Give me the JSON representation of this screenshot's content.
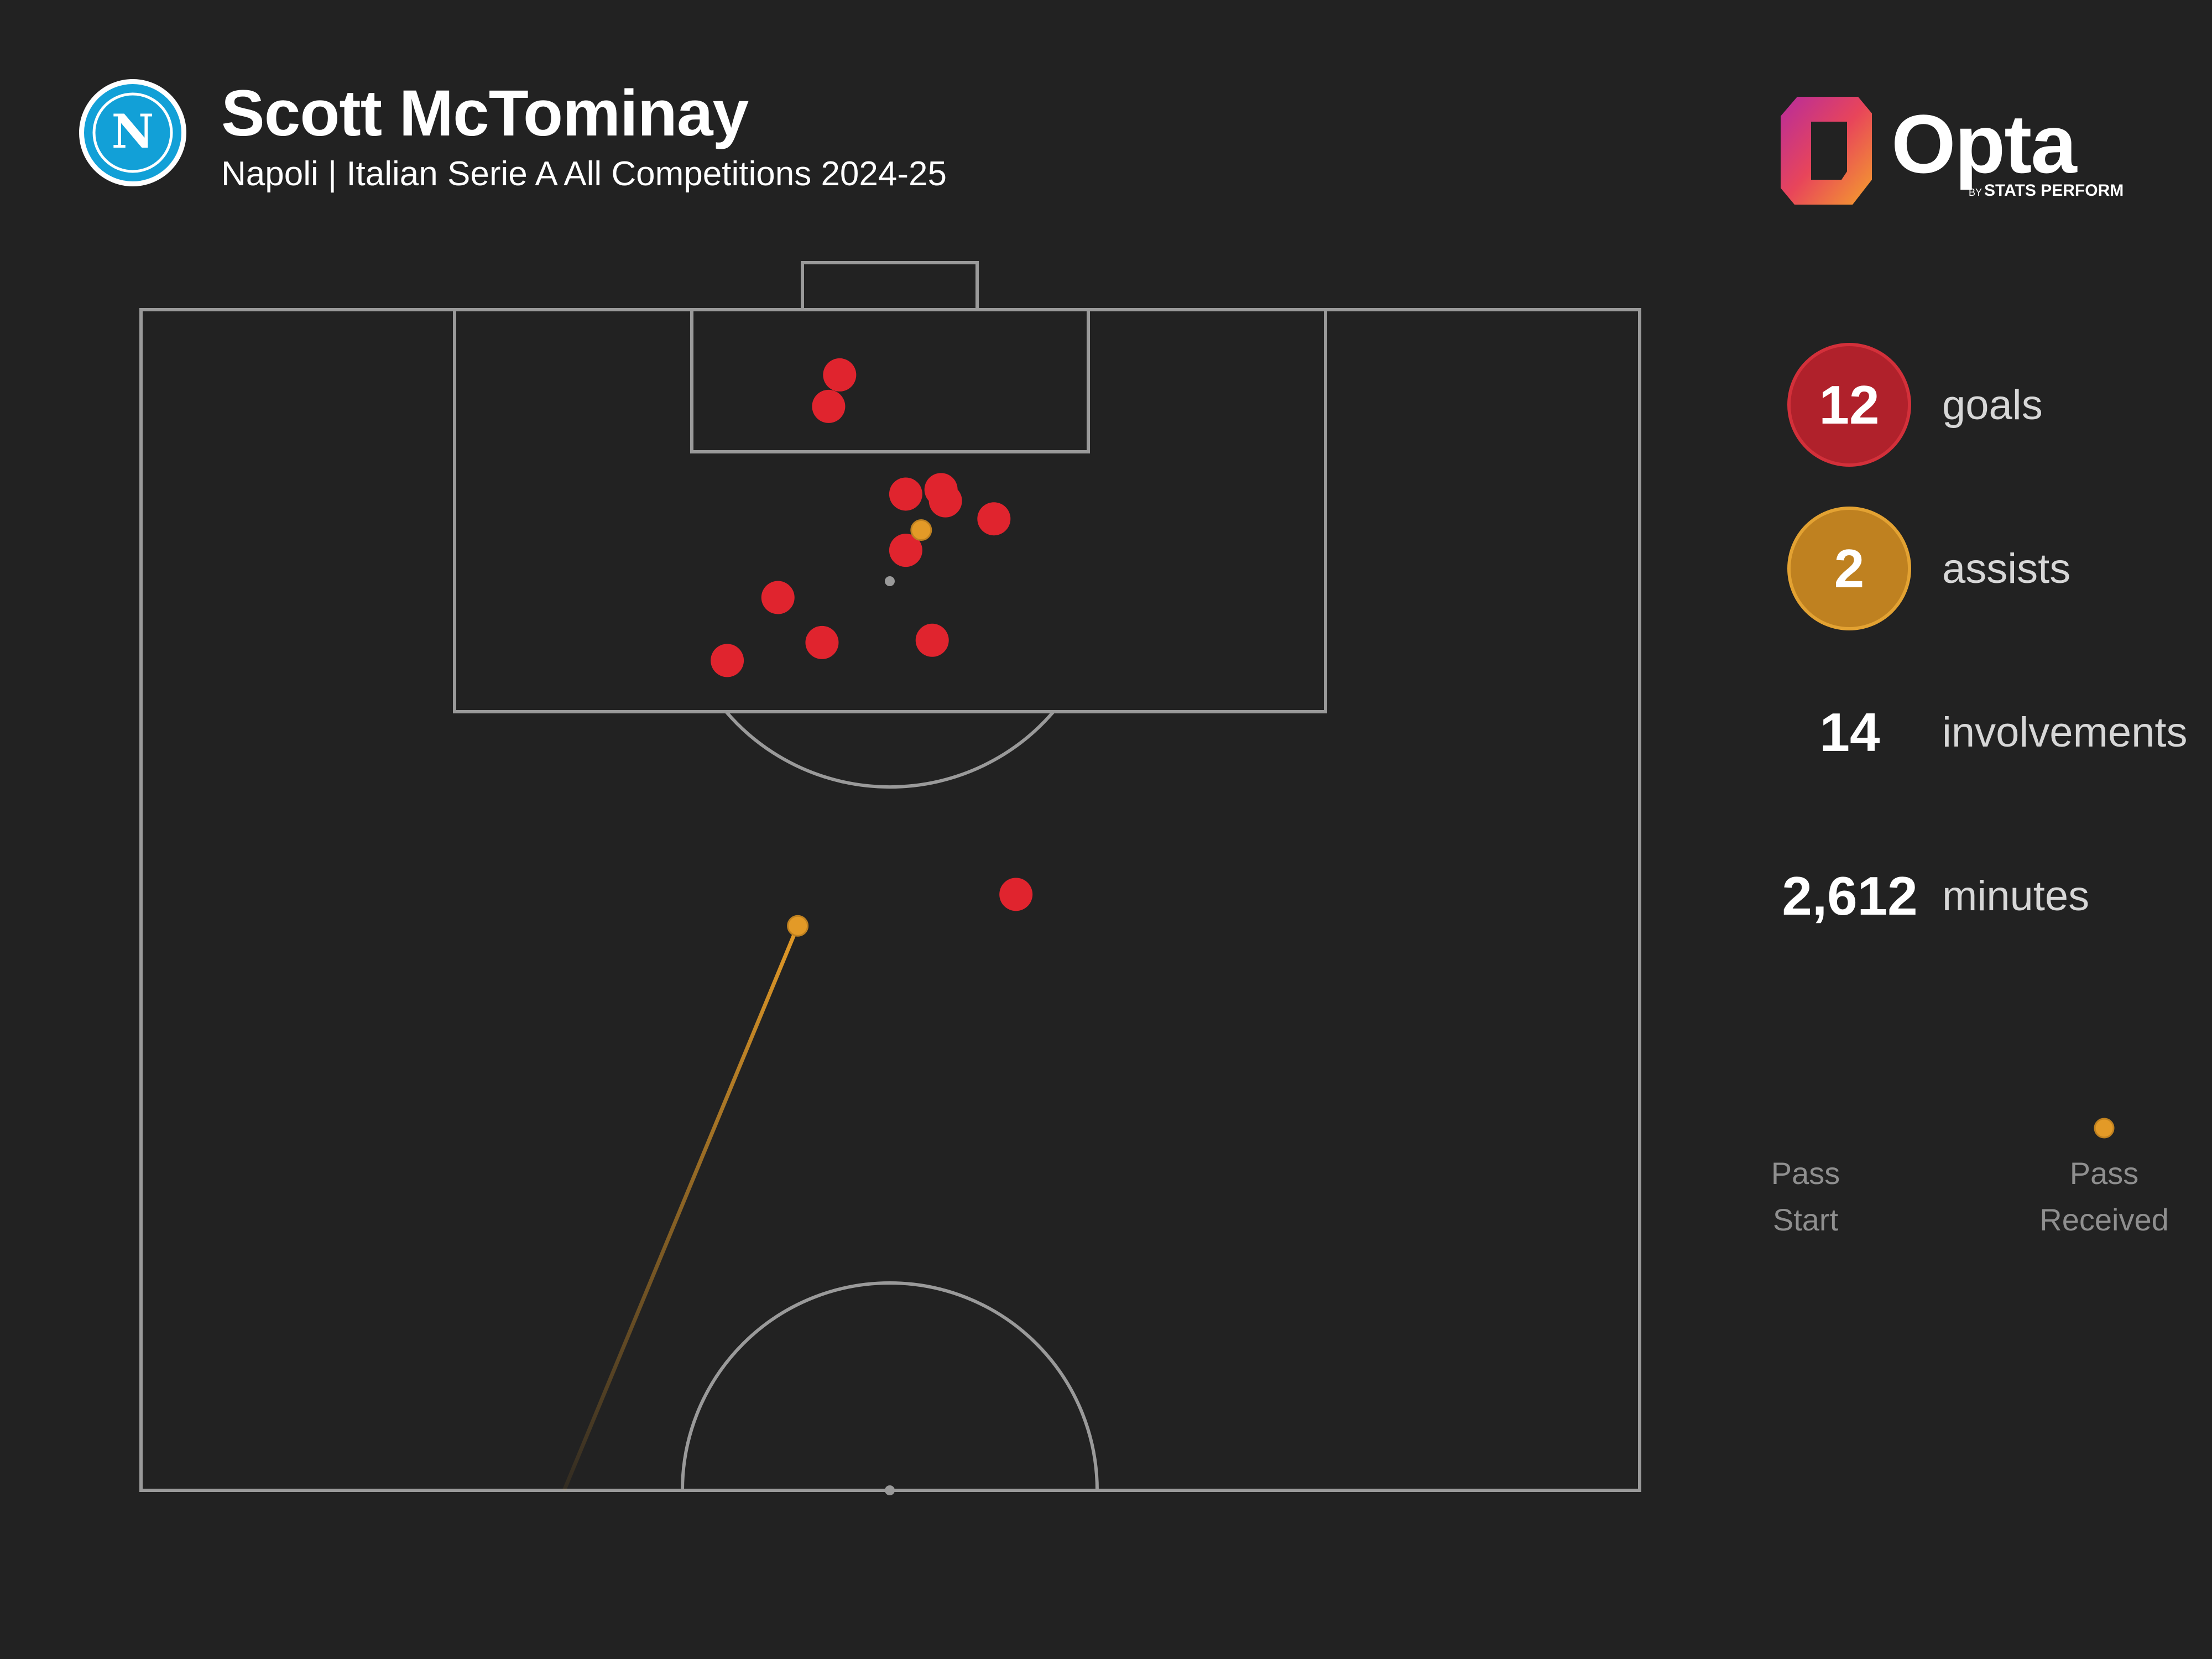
{
  "header": {
    "title": "Scott McTominay",
    "subtitle": "Napoli | Italian Serie A All Competitions 2024-25",
    "badge_letter": "N"
  },
  "logo": {
    "word": "Opta",
    "by": "BY",
    "sub": "STATS PERFORM"
  },
  "stats": [
    {
      "value": "12",
      "label": "goals",
      "style": "goal"
    },
    {
      "value": "2",
      "label": "assists",
      "style": "assist"
    },
    {
      "value": "14",
      "label": "involvements",
      "style": "plain"
    },
    {
      "value": "2,612",
      "label": "minutes",
      "style": "plain"
    }
  ],
  "legend": {
    "start_line1": "Pass",
    "start_line2": "Start",
    "end_line1": "Pass",
    "end_line2": "Received"
  },
  "colors": {
    "background": "#222222",
    "pitch_lines": "#9a9a9a",
    "goal": "#e0242e",
    "goal_circle_fill": "#b0212b",
    "goal_circle_border": "#d3303a",
    "assist": "#e39a27",
    "assist_circle_fill": "#bf8120",
    "assist_circle_border": "#e3a232"
  },
  "chart_data": {
    "type": "scatter",
    "coordinate_system": "metres from goal line (y) and from pitch centre line (x, right positive); 68 x 52.5 half pitch",
    "series": [
      {
        "type": "goals",
        "points": [
          {
            "x": -2.3,
            "y": 2.9
          },
          {
            "x": -2.8,
            "y": 4.3
          },
          {
            "x": 0.7,
            "y": 8.2
          },
          {
            "x": 2.3,
            "y": 8.0
          },
          {
            "x": 2.5,
            "y": 8.5
          },
          {
            "x": 4.7,
            "y": 9.3
          },
          {
            "x": 0.7,
            "y": 10.7
          },
          {
            "x": -5.1,
            "y": 12.8
          },
          {
            "x": -3.1,
            "y": 14.8
          },
          {
            "x": 1.9,
            "y": 14.7
          },
          {
            "x": -7.4,
            "y": 15.6
          },
          {
            "x": 5.7,
            "y": 26.0
          }
        ]
      },
      {
        "type": "assists",
        "points": [
          {
            "x": 1.4,
            "y": 9.8,
            "start_x": null,
            "start_y": null
          },
          {
            "x": -4.2,
            "y": 27.4,
            "start_x": -14.8,
            "start_y": 52.5
          }
        ]
      }
    ]
  }
}
